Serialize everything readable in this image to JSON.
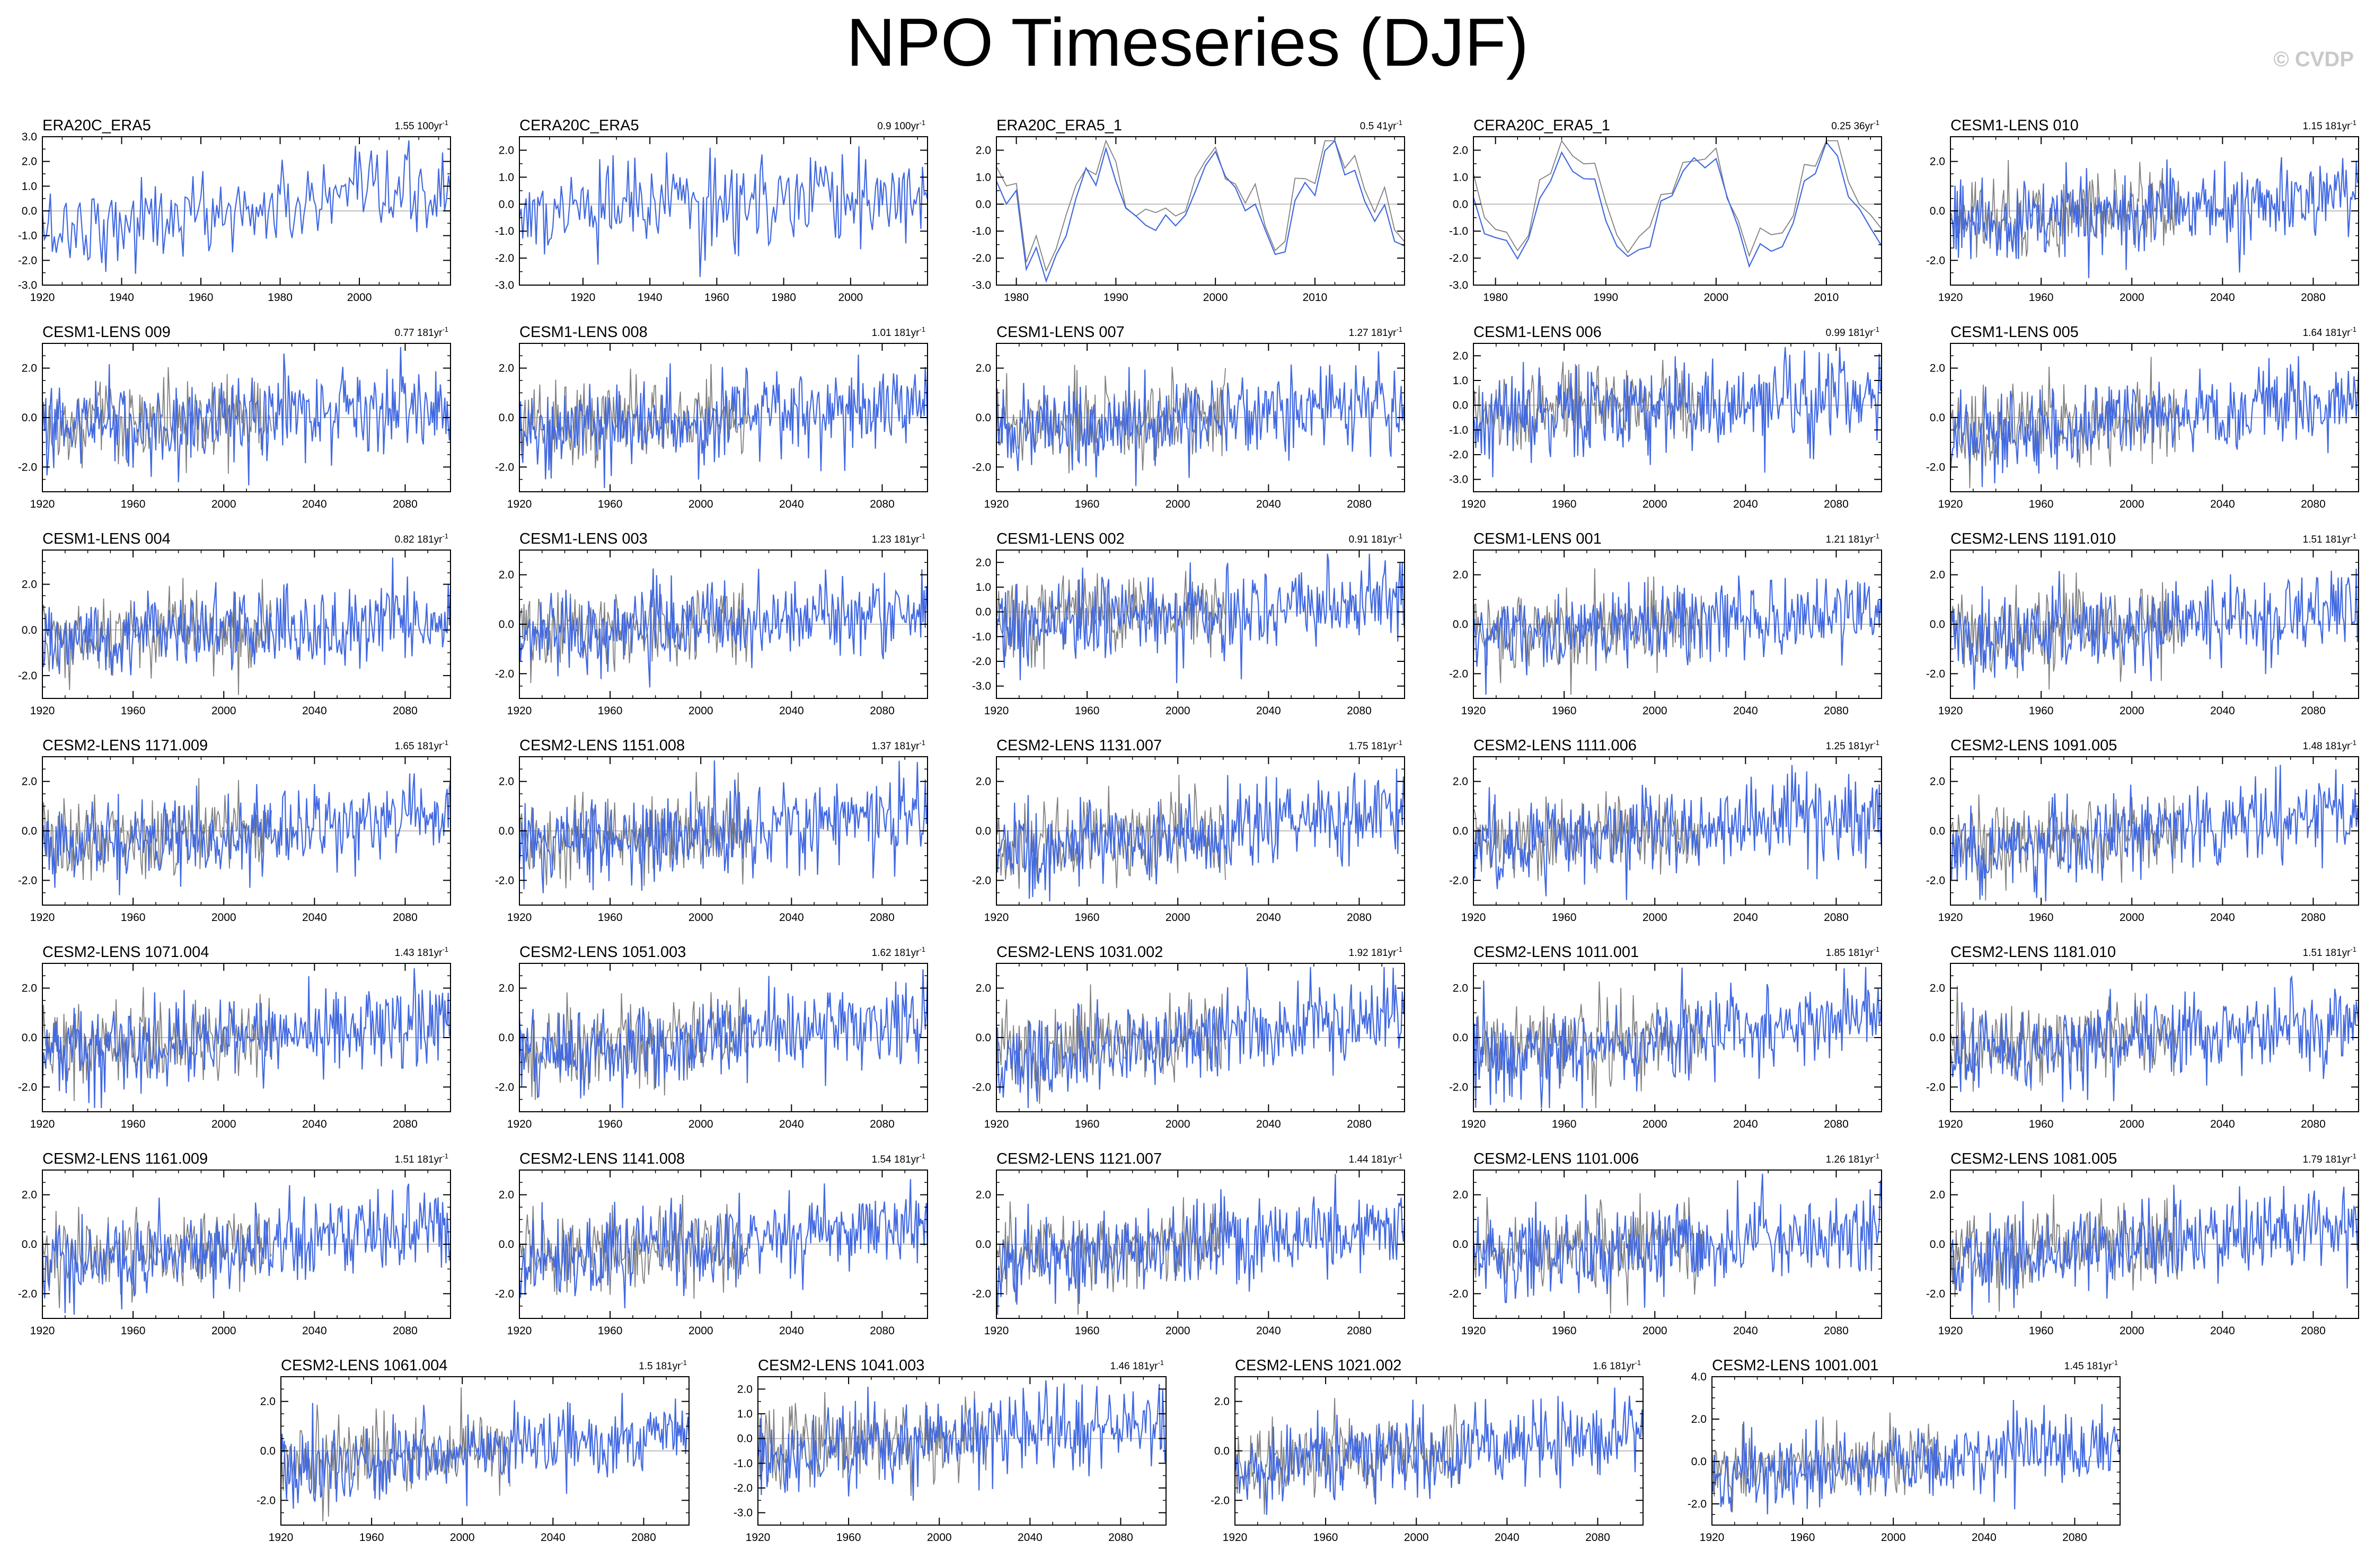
{
  "page": {
    "title": "NPO Timeseries (DJF)",
    "watermark": "© CVDP"
  },
  "colors": {
    "observed": "#4169e1",
    "reference": "#808080",
    "zero_line": "#c0c0c0",
    "frame": "#000000"
  },
  "chart_data": [
    {
      "type": "line",
      "title": "ERA20C_ERA5",
      "trend": "1.55 100yr",
      "trend_sup": "-1",
      "xlim": [
        1920,
        2023
      ],
      "ylim": [
        -3.0,
        3.0
      ],
      "xticks": [
        1920,
        1940,
        1960,
        1980,
        2000
      ],
      "ytick_labels": [
        "3.0",
        "2.0",
        "1.0",
        "0.0",
        "-1.0",
        "-2.0",
        "-3.0"
      ],
      "reference_series": false,
      "trend_slope": 1.55
    },
    {
      "type": "line",
      "title": "CERA20C_ERA5",
      "trend": "0.9 100yr",
      "trend_sup": "-1",
      "xlim": [
        1901,
        2023
      ],
      "ylim": [
        -3.0,
        2.5
      ],
      "xticks": [
        1920,
        1940,
        1960,
        1980,
        2000
      ],
      "ytick_labels": [
        "2.0",
        "1.0",
        "0.0",
        "-1.0",
        "-2.0",
        "-3.0"
      ],
      "reference_series": false,
      "trend_slope": 0.9
    },
    {
      "type": "line",
      "title": "ERA20C_ERA5_1",
      "trend": "0.5 41yr",
      "trend_sup": "-1",
      "xlim": [
        1978,
        2019
      ],
      "ylim": [
        -3.0,
        2.5
      ],
      "xticks": [
        1980,
        1990,
        2000,
        2010
      ],
      "ytick_labels": [
        "2.0",
        "1.0",
        "0.0",
        "-1.0",
        "-2.0",
        "-3.0"
      ],
      "reference_series": true,
      "annual": true,
      "trend_slope": 0.5
    },
    {
      "type": "line",
      "title": "CERA20C_ERA5_1",
      "trend": "0.25 36yr",
      "trend_sup": "-1",
      "xlim": [
        1978,
        2015
      ],
      "ylim": [
        -3.0,
        2.5
      ],
      "xticks": [
        1980,
        1990,
        2000,
        2010
      ],
      "ytick_labels": [
        "2.0",
        "1.0",
        "0.0",
        "-1.0",
        "-2.0",
        "-3.0"
      ],
      "reference_series": true,
      "annual": true,
      "trend_slope": 0.25
    },
    {
      "type": "line",
      "title": "CESM1-LENS 010",
      "trend": "1.15 181yr",
      "trend_sup": "-1",
      "xlim": [
        1920,
        2100
      ],
      "ylim": [
        -3.0,
        3.0
      ],
      "xticks": [
        1920,
        1960,
        2000,
        2040,
        2080
      ],
      "ytick_labels": [
        "2.0",
        "0.0",
        "-2.0"
      ],
      "reference_series": true,
      "trend_slope": 1.15
    },
    {
      "type": "line",
      "title": "CESM1-LENS 009",
      "trend": "0.77 181yr",
      "trend_sup": "-1",
      "xlim": [
        1920,
        2100
      ],
      "ylim": [
        -3.0,
        3.0
      ],
      "xticks": [
        1920,
        1960,
        2000,
        2040,
        2080
      ],
      "ytick_labels": [
        "2.0",
        "0.0",
        "-2.0"
      ],
      "reference_series": true,
      "trend_slope": 0.77
    },
    {
      "type": "line",
      "title": "CESM1-LENS 008",
      "trend": "1.01 181yr",
      "trend_sup": "-1",
      "xlim": [
        1920,
        2100
      ],
      "ylim": [
        -3.0,
        3.0
      ],
      "xticks": [
        1920,
        1960,
        2000,
        2040,
        2080
      ],
      "ytick_labels": [
        "2.0",
        "0.0",
        "-2.0"
      ],
      "reference_series": true,
      "trend_slope": 1.01
    },
    {
      "type": "line",
      "title": "CESM1-LENS 007",
      "trend": "1.27 181yr",
      "trend_sup": "-1",
      "xlim": [
        1920,
        2100
      ],
      "ylim": [
        -3.0,
        3.0
      ],
      "xticks": [
        1920,
        1960,
        2000,
        2040,
        2080
      ],
      "ytick_labels": [
        "2.0",
        "0.0",
        "-2.0"
      ],
      "reference_series": true,
      "trend_slope": 1.27
    },
    {
      "type": "line",
      "title": "CESM1-LENS 006",
      "trend": "0.99 181yr",
      "trend_sup": "-1",
      "xlim": [
        1920,
        2100
      ],
      "ylim": [
        -3.5,
        2.5
      ],
      "xticks": [
        1920,
        1960,
        2000,
        2040,
        2080
      ],
      "ytick_labels": [
        "2.0",
        "1.0",
        "0.0",
        "-1.0",
        "-2.0",
        "-3.0"
      ],
      "reference_series": true,
      "trend_slope": 0.99
    },
    {
      "type": "line",
      "title": "CESM1-LENS 005",
      "trend": "1.64 181yr",
      "trend_sup": "-1",
      "xlim": [
        1920,
        2100
      ],
      "ylim": [
        -3.0,
        3.0
      ],
      "xticks": [
        1920,
        1960,
        2000,
        2040,
        2080
      ],
      "ytick_labels": [
        "2.0",
        "0.0",
        "-2.0"
      ],
      "reference_series": true,
      "trend_slope": 1.64
    },
    {
      "type": "line",
      "title": "CESM1-LENS 004",
      "trend": "0.82 181yr",
      "trend_sup": "-1",
      "xlim": [
        1920,
        2100
      ],
      "ylim": [
        -3.0,
        3.5
      ],
      "xticks": [
        1920,
        1960,
        2000,
        2040,
        2080
      ],
      "ytick_labels": [
        "2.0",
        "0.0",
        "-2.0"
      ],
      "reference_series": true,
      "trend_slope": 0.82
    },
    {
      "type": "line",
      "title": "CESM1-LENS 003",
      "trend": "1.23 181yr",
      "trend_sup": "-1",
      "xlim": [
        1920,
        2100
      ],
      "ylim": [
        -3.0,
        3.0
      ],
      "xticks": [
        1920,
        1960,
        2000,
        2040,
        2080
      ],
      "ytick_labels": [
        "2.0",
        "0.0",
        "-2.0"
      ],
      "reference_series": true,
      "trend_slope": 1.23
    },
    {
      "type": "line",
      "title": "CESM1-LENS 002",
      "trend": "0.91 181yr",
      "trend_sup": "-1",
      "xlim": [
        1920,
        2100
      ],
      "ylim": [
        -3.5,
        2.5
      ],
      "xticks": [
        1920,
        1960,
        2000,
        2040,
        2080
      ],
      "ytick_labels": [
        "2.0",
        "1.0",
        "0.0",
        "-1.0",
        "-2.0",
        "-3.0"
      ],
      "reference_series": true,
      "trend_slope": 0.91
    },
    {
      "type": "line",
      "title": "CESM1-LENS 001",
      "trend": "1.21 181yr",
      "trend_sup": "-1",
      "xlim": [
        1920,
        2100
      ],
      "ylim": [
        -3.0,
        3.0
      ],
      "xticks": [
        1920,
        1960,
        2000,
        2040,
        2080
      ],
      "ytick_labels": [
        "2.0",
        "0.0",
        "-2.0"
      ],
      "reference_series": true,
      "trend_slope": 1.21
    },
    {
      "type": "line",
      "title": "CESM2-LENS 1191.010",
      "trend": "1.51 181yr",
      "trend_sup": "-1",
      "xlim": [
        1920,
        2100
      ],
      "ylim": [
        -3.0,
        3.0
      ],
      "xticks": [
        1920,
        1960,
        2000,
        2040,
        2080
      ],
      "ytick_labels": [
        "2.0",
        "0.0",
        "-2.0"
      ],
      "reference_series": true,
      "trend_slope": 1.51
    },
    {
      "type": "line",
      "title": "CESM2-LENS 1171.009",
      "trend": "1.65 181yr",
      "trend_sup": "-1",
      "xlim": [
        1920,
        2100
      ],
      "ylim": [
        -3.0,
        3.0
      ],
      "xticks": [
        1920,
        1960,
        2000,
        2040,
        2080
      ],
      "ytick_labels": [
        "2.0",
        "0.0",
        "-2.0"
      ],
      "reference_series": true,
      "trend_slope": 1.65
    },
    {
      "type": "line",
      "title": "CESM2-LENS 1151.008",
      "trend": "1.37 181yr",
      "trend_sup": "-1",
      "xlim": [
        1920,
        2100
      ],
      "ylim": [
        -3.0,
        3.0
      ],
      "xticks": [
        1920,
        1960,
        2000,
        2040,
        2080
      ],
      "ytick_labels": [
        "2.0",
        "0.0",
        "-2.0"
      ],
      "reference_series": true,
      "trend_slope": 1.37
    },
    {
      "type": "line",
      "title": "CESM2-LENS 1131.007",
      "trend": "1.75 181yr",
      "trend_sup": "-1",
      "xlim": [
        1920,
        2100
      ],
      "ylim": [
        -3.0,
        3.0
      ],
      "xticks": [
        1920,
        1960,
        2000,
        2040,
        2080
      ],
      "ytick_labels": [
        "2.0",
        "0.0",
        "-2.0"
      ],
      "reference_series": true,
      "trend_slope": 1.75
    },
    {
      "type": "line",
      "title": "CESM2-LENS 1111.006",
      "trend": "1.25 181yr",
      "trend_sup": "-1",
      "xlim": [
        1920,
        2100
      ],
      "ylim": [
        -3.0,
        3.0
      ],
      "xticks": [
        1920,
        1960,
        2000,
        2040,
        2080
      ],
      "ytick_labels": [
        "2.0",
        "0.0",
        "-2.0"
      ],
      "reference_series": true,
      "trend_slope": 1.25
    },
    {
      "type": "line",
      "title": "CESM2-LENS 1091.005",
      "trend": "1.48 181yr",
      "trend_sup": "-1",
      "xlim": [
        1920,
        2100
      ],
      "ylim": [
        -3.0,
        3.0
      ],
      "xticks": [
        1920,
        1960,
        2000,
        2040,
        2080
      ],
      "ytick_labels": [
        "2.0",
        "0.0",
        "-2.0"
      ],
      "reference_series": true,
      "trend_slope": 1.48
    },
    {
      "type": "line",
      "title": "CESM2-LENS 1071.004",
      "trend": "1.43 181yr",
      "trend_sup": "-1",
      "xlim": [
        1920,
        2100
      ],
      "ylim": [
        -3.0,
        3.0
      ],
      "xticks": [
        1920,
        1960,
        2000,
        2040,
        2080
      ],
      "ytick_labels": [
        "2.0",
        "0.0",
        "-2.0"
      ],
      "reference_series": true,
      "trend_slope": 1.43
    },
    {
      "type": "line",
      "title": "CESM2-LENS 1051.003",
      "trend": "1.62 181yr",
      "trend_sup": "-1",
      "xlim": [
        1920,
        2100
      ],
      "ylim": [
        -3.0,
        3.0
      ],
      "xticks": [
        1920,
        1960,
        2000,
        2040,
        2080
      ],
      "ytick_labels": [
        "2.0",
        "0.0",
        "-2.0"
      ],
      "reference_series": true,
      "trend_slope": 1.62
    },
    {
      "type": "line",
      "title": "CESM2-LENS 1031.002",
      "trend": "1.92 181yr",
      "trend_sup": "-1",
      "xlim": [
        1920,
        2100
      ],
      "ylim": [
        -3.0,
        3.0
      ],
      "xticks": [
        1920,
        1960,
        2000,
        2040,
        2080
      ],
      "ytick_labels": [
        "2.0",
        "0.0",
        "-2.0"
      ],
      "reference_series": true,
      "trend_slope": 1.92
    },
    {
      "type": "line",
      "title": "CESM2-LENS 1011.001",
      "trend": "1.85 181yr",
      "trend_sup": "-1",
      "xlim": [
        1920,
        2100
      ],
      "ylim": [
        -3.0,
        3.0
      ],
      "xticks": [
        1920,
        1960,
        2000,
        2040,
        2080
      ],
      "ytick_labels": [
        "2.0",
        "0.0",
        "-2.0"
      ],
      "reference_series": true,
      "trend_slope": 1.85
    },
    {
      "type": "line",
      "title": "CESM2-LENS 1181.010",
      "trend": "1.51 181yr",
      "trend_sup": "-1",
      "xlim": [
        1920,
        2100
      ],
      "ylim": [
        -3.0,
        3.0
      ],
      "xticks": [
        1920,
        1960,
        2000,
        2040,
        2080
      ],
      "ytick_labels": [
        "2.0",
        "0.0",
        "-2.0"
      ],
      "reference_series": true,
      "trend_slope": 1.51
    },
    {
      "type": "line",
      "title": "CESM2-LENS 1161.009",
      "trend": "1.51 181yr",
      "trend_sup": "-1",
      "xlim": [
        1920,
        2100
      ],
      "ylim": [
        -3.0,
        3.0
      ],
      "xticks": [
        1920,
        1960,
        2000,
        2040,
        2080
      ],
      "ytick_labels": [
        "2.0",
        "0.0",
        "-2.0"
      ],
      "reference_series": true,
      "trend_slope": 1.51
    },
    {
      "type": "line",
      "title": "CESM2-LENS 1141.008",
      "trend": "1.54 181yr",
      "trend_sup": "-1",
      "xlim": [
        1920,
        2100
      ],
      "ylim": [
        -3.0,
        3.0
      ],
      "xticks": [
        1920,
        1960,
        2000,
        2040,
        2080
      ],
      "ytick_labels": [
        "2.0",
        "0.0",
        "-2.0"
      ],
      "reference_series": true,
      "trend_slope": 1.54
    },
    {
      "type": "line",
      "title": "CESM2-LENS 1121.007",
      "trend": "1.44 181yr",
      "trend_sup": "-1",
      "xlim": [
        1920,
        2100
      ],
      "ylim": [
        -3.0,
        3.0
      ],
      "xticks": [
        1920,
        1960,
        2000,
        2040,
        2080
      ],
      "ytick_labels": [
        "2.0",
        "0.0",
        "-2.0"
      ],
      "reference_series": true,
      "trend_slope": 1.44
    },
    {
      "type": "line",
      "title": "CESM2-LENS 1101.006",
      "trend": "1.26 181yr",
      "trend_sup": "-1",
      "xlim": [
        1920,
        2100
      ],
      "ylim": [
        -3.0,
        3.0
      ],
      "xticks": [
        1920,
        1960,
        2000,
        2040,
        2080
      ],
      "ytick_labels": [
        "2.0",
        "0.0",
        "-2.0"
      ],
      "reference_series": true,
      "trend_slope": 1.26
    },
    {
      "type": "line",
      "title": "CESM2-LENS 1081.005",
      "trend": "1.79 181yr",
      "trend_sup": "-1",
      "xlim": [
        1920,
        2100
      ],
      "ylim": [
        -3.0,
        3.0
      ],
      "xticks": [
        1920,
        1960,
        2000,
        2040,
        2080
      ],
      "ytick_labels": [
        "2.0",
        "0.0",
        "-2.0"
      ],
      "reference_series": true,
      "trend_slope": 1.79
    },
    {
      "type": "line",
      "title": "CESM2-LENS 1061.004",
      "trend": "1.5 181yr",
      "trend_sup": "-1",
      "xlim": [
        1920,
        2100
      ],
      "ylim": [
        -3.0,
        3.0
      ],
      "xticks": [
        1920,
        1960,
        2000,
        2040,
        2080
      ],
      "ytick_labels": [
        "2.0",
        "0.0",
        "-2.0"
      ],
      "reference_series": true,
      "trend_slope": 1.5
    },
    {
      "type": "line",
      "title": "CESM2-LENS 1041.003",
      "trend": "1.46 181yr",
      "trend_sup": "-1",
      "xlim": [
        1920,
        2100
      ],
      "ylim": [
        -3.5,
        2.5
      ],
      "xticks": [
        1920,
        1960,
        2000,
        2040,
        2080
      ],
      "ytick_labels": [
        "2.0",
        "1.0",
        "0.0",
        "-1.0",
        "-2.0",
        "-3.0"
      ],
      "reference_series": true,
      "trend_slope": 1.46
    },
    {
      "type": "line",
      "title": "CESM2-LENS 1021.002",
      "trend": "1.6 181yr",
      "trend_sup": "-1",
      "xlim": [
        1920,
        2100
      ],
      "ylim": [
        -3.0,
        3.0
      ],
      "xticks": [
        1920,
        1960,
        2000,
        2040,
        2080
      ],
      "ytick_labels": [
        "2.0",
        "0.0",
        "-2.0"
      ],
      "reference_series": true,
      "trend_slope": 1.6
    },
    {
      "type": "line",
      "title": "CESM2-LENS 1001.001",
      "trend": "1.45 181yr",
      "trend_sup": "-1",
      "xlim": [
        1920,
        2100
      ],
      "ylim": [
        -3.0,
        4.0
      ],
      "xticks": [
        1920,
        1960,
        2000,
        2040,
        2080
      ],
      "ytick_labels": [
        "4.0",
        "2.0",
        "0.0",
        "-2.0"
      ],
      "reference_series": true,
      "trend_slope": 1.45
    }
  ]
}
